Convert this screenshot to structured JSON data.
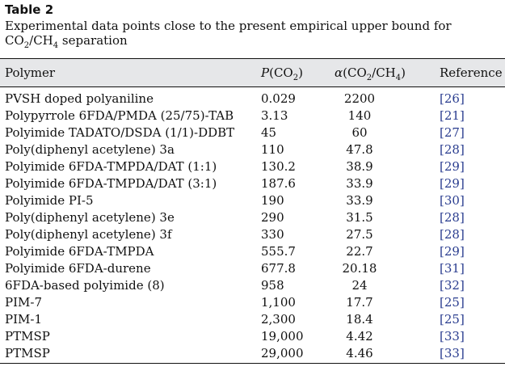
{
  "table": {
    "label": "Table 2",
    "caption_before": "Experimental data points close to the present empirical upper bound for CO",
    "caption_sub1": "2",
    "caption_mid": "/CH",
    "caption_sub2": "4",
    "caption_after": " separation",
    "headers": {
      "polymer": "Polymer",
      "p_symbol": "P",
      "p_open": "(CO",
      "p_sub": "2",
      "p_close": ")",
      "alpha_symbol": "α",
      "alpha_open": "(CO",
      "alpha_sub1": "2",
      "alpha_mid": "/CH",
      "alpha_sub2": "4",
      "alpha_close": ")",
      "reference": "Reference"
    },
    "rows": [
      {
        "polymer": "PVSH doped polyaniline",
        "p": "0.029",
        "alpha": "2200",
        "ref": "[26]"
      },
      {
        "polymer": "Polypyrrole 6FDA/PMDA (25/75)-TAB",
        "p": "3.13",
        "alpha": "140",
        "ref": "[21]"
      },
      {
        "polymer": "Polyimide TADATO/DSDA (1/1)-DDBT",
        "p": "45",
        "alpha": "60",
        "ref": "[27]"
      },
      {
        "polymer": "Poly(diphenyl acetylene) 3a",
        "p": "110",
        "alpha": "47.8",
        "ref": "[28]"
      },
      {
        "polymer": "Polyimide 6FDA-TMPDA/DAT (1:1)",
        "p": "130.2",
        "alpha": "38.9",
        "ref": "[29]"
      },
      {
        "polymer": "Polyimide 6FDA-TMPDA/DAT (3:1)",
        "p": "187.6",
        "alpha": "33.9",
        "ref": "[29]"
      },
      {
        "polymer": "Polyimide PI-5",
        "p": "190",
        "alpha": "33.9",
        "ref": "[30]"
      },
      {
        "polymer": "Poly(diphenyl acetylene) 3e",
        "p": "290",
        "alpha": "31.5",
        "ref": "[28]"
      },
      {
        "polymer": "Poly(diphenyl acetylene) 3f",
        "p": "330",
        "alpha": "27.5",
        "ref": "[28]"
      },
      {
        "polymer": "Polyimide 6FDA-TMPDA",
        "p": "555.7",
        "alpha": "22.7",
        "ref": "[29]"
      },
      {
        "polymer": "Polyimide 6FDA-durene",
        "p": "677.8",
        "alpha": "20.18",
        "ref": "[31]"
      },
      {
        "polymer": "6FDA-based polyimide (8)",
        "p": "958",
        "alpha": "24",
        "ref": "[32]"
      },
      {
        "polymer": "PIM-7",
        "p": "1,100",
        "alpha": "17.7",
        "ref": "[25]"
      },
      {
        "polymer": "PIM-1",
        "p": "2,300",
        "alpha": "18.4",
        "ref": "[25]"
      },
      {
        "polymer": "PTMSP",
        "p": "19,000",
        "alpha": "4.42",
        "ref": "[33]"
      },
      {
        "polymer": "PTMSP",
        "p": "29,000",
        "alpha": "4.46",
        "ref": "[33]"
      }
    ],
    "colors": {
      "header_background": "#e6e7e9",
      "reference_link": "#2a3d8f",
      "text": "#111111"
    }
  }
}
